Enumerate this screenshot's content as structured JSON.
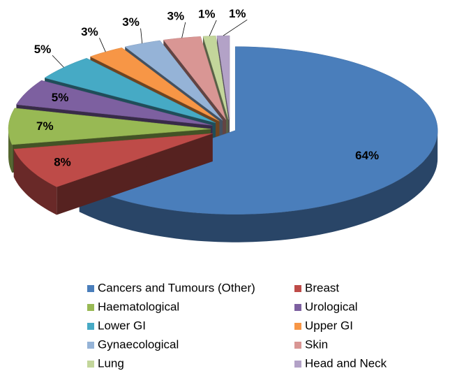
{
  "chart_data": {
    "type": "pie",
    "categories": [
      "Cancers and Tumours (Other)",
      "Breast",
      "Haematological",
      "Urological",
      "Lower GI",
      "Upper GI",
      "Gynaecological",
      "Skin",
      "Lung",
      "Head and Neck"
    ],
    "values": [
      64,
      8,
      7,
      5,
      5,
      3,
      3,
      3,
      1,
      1
    ],
    "value_labels": [
      "64%",
      "8%",
      "7%",
      "5%",
      "5%",
      "3%",
      "3%",
      "3%",
      "1%",
      "1%"
    ],
    "colors": [
      "#4a7ebb",
      "#be4b48",
      "#98b954",
      "#7d60a0",
      "#46aac5",
      "#f79646",
      "#95b3d7",
      "#d99694",
      "#c3d69b",
      "#b3a2c7"
    ]
  }
}
